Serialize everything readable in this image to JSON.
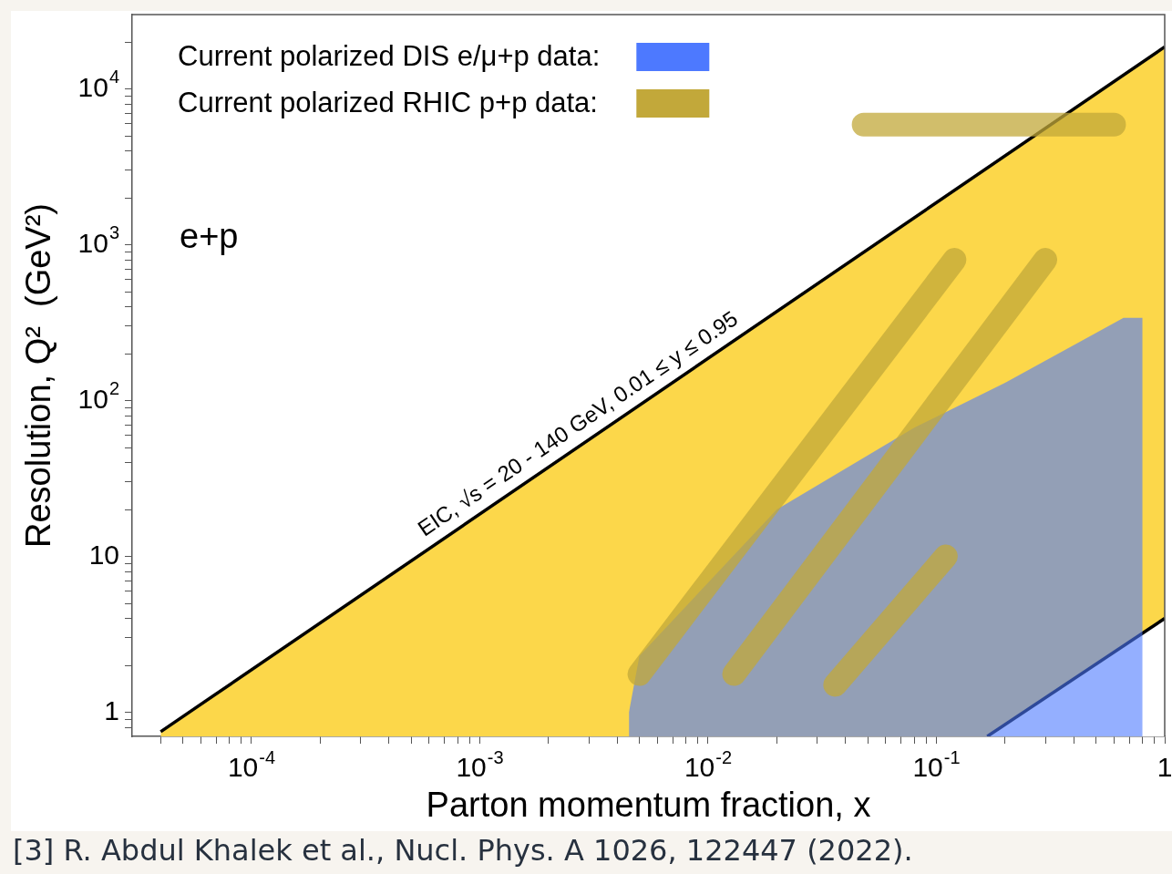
{
  "chart_data": {
    "type": "area",
    "xlabel": "Parton momentum fraction, x",
    "ylabel": "Resolution, Q²  (GeV²)",
    "log": "xy",
    "grid": false,
    "legend": "top left",
    "xlim": [
      3e-05,
      1
    ],
    "ylim": [
      0.7,
      30000
    ],
    "xticks": [
      {
        "value": 4e-05,
        "label": null
      },
      {
        "value": 5e-05,
        "label": null
      },
      {
        "value": 6e-05,
        "label": null
      },
      {
        "value": 7e-05,
        "label": null
      },
      {
        "value": 8e-05,
        "label": null
      },
      {
        "value": 9e-05,
        "label": null
      },
      {
        "value": 0.0001,
        "label": "10$^{-4}$"
      },
      {
        "value": 0.0002,
        "label": null
      },
      {
        "value": 0.0003,
        "label": null
      },
      {
        "value": 0.0004,
        "label": null
      },
      {
        "value": 0.0005,
        "label": null
      },
      {
        "value": 0.0006,
        "label": null
      },
      {
        "value": 0.0007,
        "label": null
      },
      {
        "value": 0.0008,
        "label": null
      },
      {
        "value": 0.0009,
        "label": null
      },
      {
        "value": 0.001,
        "label": "10$^{-3}$"
      },
      {
        "value": 0.002,
        "label": null
      },
      {
        "value": 0.003,
        "label": null
      },
      {
        "value": 0.004,
        "label": null
      },
      {
        "value": 0.005,
        "label": null
      },
      {
        "value": 0.006,
        "label": null
      },
      {
        "value": 0.007,
        "label": null
      },
      {
        "value": 0.008,
        "label": null
      },
      {
        "value": 0.009,
        "label": null
      },
      {
        "value": 0.01,
        "label": "10$^{-2}$"
      },
      {
        "value": 0.02,
        "label": null
      },
      {
        "value": 0.03,
        "label": null
      },
      {
        "value": 0.04,
        "label": null
      },
      {
        "value": 0.05,
        "label": null
      },
      {
        "value": 0.06,
        "label": null
      },
      {
        "value": 0.07,
        "label": null
      },
      {
        "value": 0.08,
        "label": null
      },
      {
        "value": 0.09,
        "label": null
      },
      {
        "value": 0.1,
        "label": "10$^{-1}$"
      },
      {
        "value": 0.2,
        "label": null
      },
      {
        "value": 0.3,
        "label": null
      },
      {
        "value": 0.4,
        "label": null
      },
      {
        "value": 0.5,
        "label": null
      },
      {
        "value": 0.6,
        "label": null
      },
      {
        "value": 0.7,
        "label": null
      },
      {
        "value": 0.8,
        "label": null
      },
      {
        "value": 0.9,
        "label": null
      },
      1
    ],
    "yticks": [
      {
        "value": 0.8,
        "label": null
      },
      {
        "value": 0.9,
        "label": null
      },
      1,
      {
        "value": 2,
        "label": null
      },
      {
        "value": 3,
        "label": null
      },
      {
        "value": 4,
        "label": null
      },
      {
        "value": 5,
        "label": null
      },
      {
        "value": 6,
        "label": null
      },
      {
        "value": 7,
        "label": null
      },
      {
        "value": 8,
        "label": null
      },
      {
        "value": 9,
        "label": null
      },
      10,
      {
        "value": 20,
        "label": null
      },
      {
        "value": 30,
        "label": null
      },
      {
        "value": 40,
        "label": null
      },
      {
        "value": 50,
        "label": null
      },
      {
        "value": 60,
        "label": null
      },
      {
        "value": 70,
        "label": null
      },
      {
        "value": 80,
        "label": null
      },
      {
        "value": 90,
        "label": null
      },
      {
        "value": 100,
        "label": "10$^{2}$"
      },
      {
        "value": 200,
        "label": null
      },
      {
        "value": 300,
        "label": null
      },
      {
        "value": 400,
        "label": null
      },
      {
        "value": 500,
        "label": null
      },
      {
        "value": 600,
        "label": null
      },
      {
        "value": 700,
        "label": null
      },
      {
        "value": 800,
        "label": null
      },
      {
        "value": 900,
        "label": null
      },
      {
        "value": 1000,
        "label": "10$^{3}$"
      },
      {
        "value": 2000,
        "label": null
      },
      {
        "value": 3000,
        "label": null
      },
      {
        "value": 4000,
        "label": null
      },
      {
        "value": 5000,
        "label": null
      },
      {
        "value": 6000,
        "label": null
      },
      {
        "value": 7000,
        "label": null
      },
      {
        "value": 8000,
        "label": null
      },
      {
        "value": 9000,
        "label": null
      },
      {
        "value": 10000,
        "label": "10$^{4}$"
      },
      {
        "value": 20000,
        "label": null
      }
    ],
    "series": [
      {
        "type": "area",
        "color": "#fcd74a",
        "line_style": "solid",
        "x": [
          4e-05,
          1
        ],
        "values": [
          0.75,
          18600
        ]
      },
      {
        "type": "area",
        "color": "#ffffff",
        "line_style": "solid",
        "x": [
          0.167,
          1
        ],
        "values": [
          0.7,
          4
        ]
      },
      {
        "type": "area",
        "name": "Current polarized DIS e/μ+p data:",
        "color": "#4d79ff",
        "x": [
          0.0045,
          0.005,
          0.02,
          0.08,
          0.2,
          0.66,
          0.8
        ],
        "values": [
          1,
          2.3,
          20,
          67,
          130,
          340,
          340
        ]
      },
      {
        "type": "line",
        "name": "Current polarized RHIC p+p data:",
        "color": "#c2a83a",
        "x": [
          0.048,
          0.6,
          null,
          0.005,
          0.12,
          null,
          0.013,
          0.3,
          null,
          0.036,
          0.11
        ],
        "values": [
          5900,
          5900,
          null,
          1.76,
          800,
          null,
          1.76,
          800,
          null,
          1.5,
          10
        ]
      }
    ],
    "annotations": [
      {
        "text": "EIC, √s = 20 - 140 GeV, 0.01 ≤ y ≤ 0.95",
        "x": 0.003,
        "y": 56
      },
      "e+p",
      "[3] R. Abdul Khalek et al., Nucl. Phys. A 1026, 122447 (2022)."
    ]
  }
}
